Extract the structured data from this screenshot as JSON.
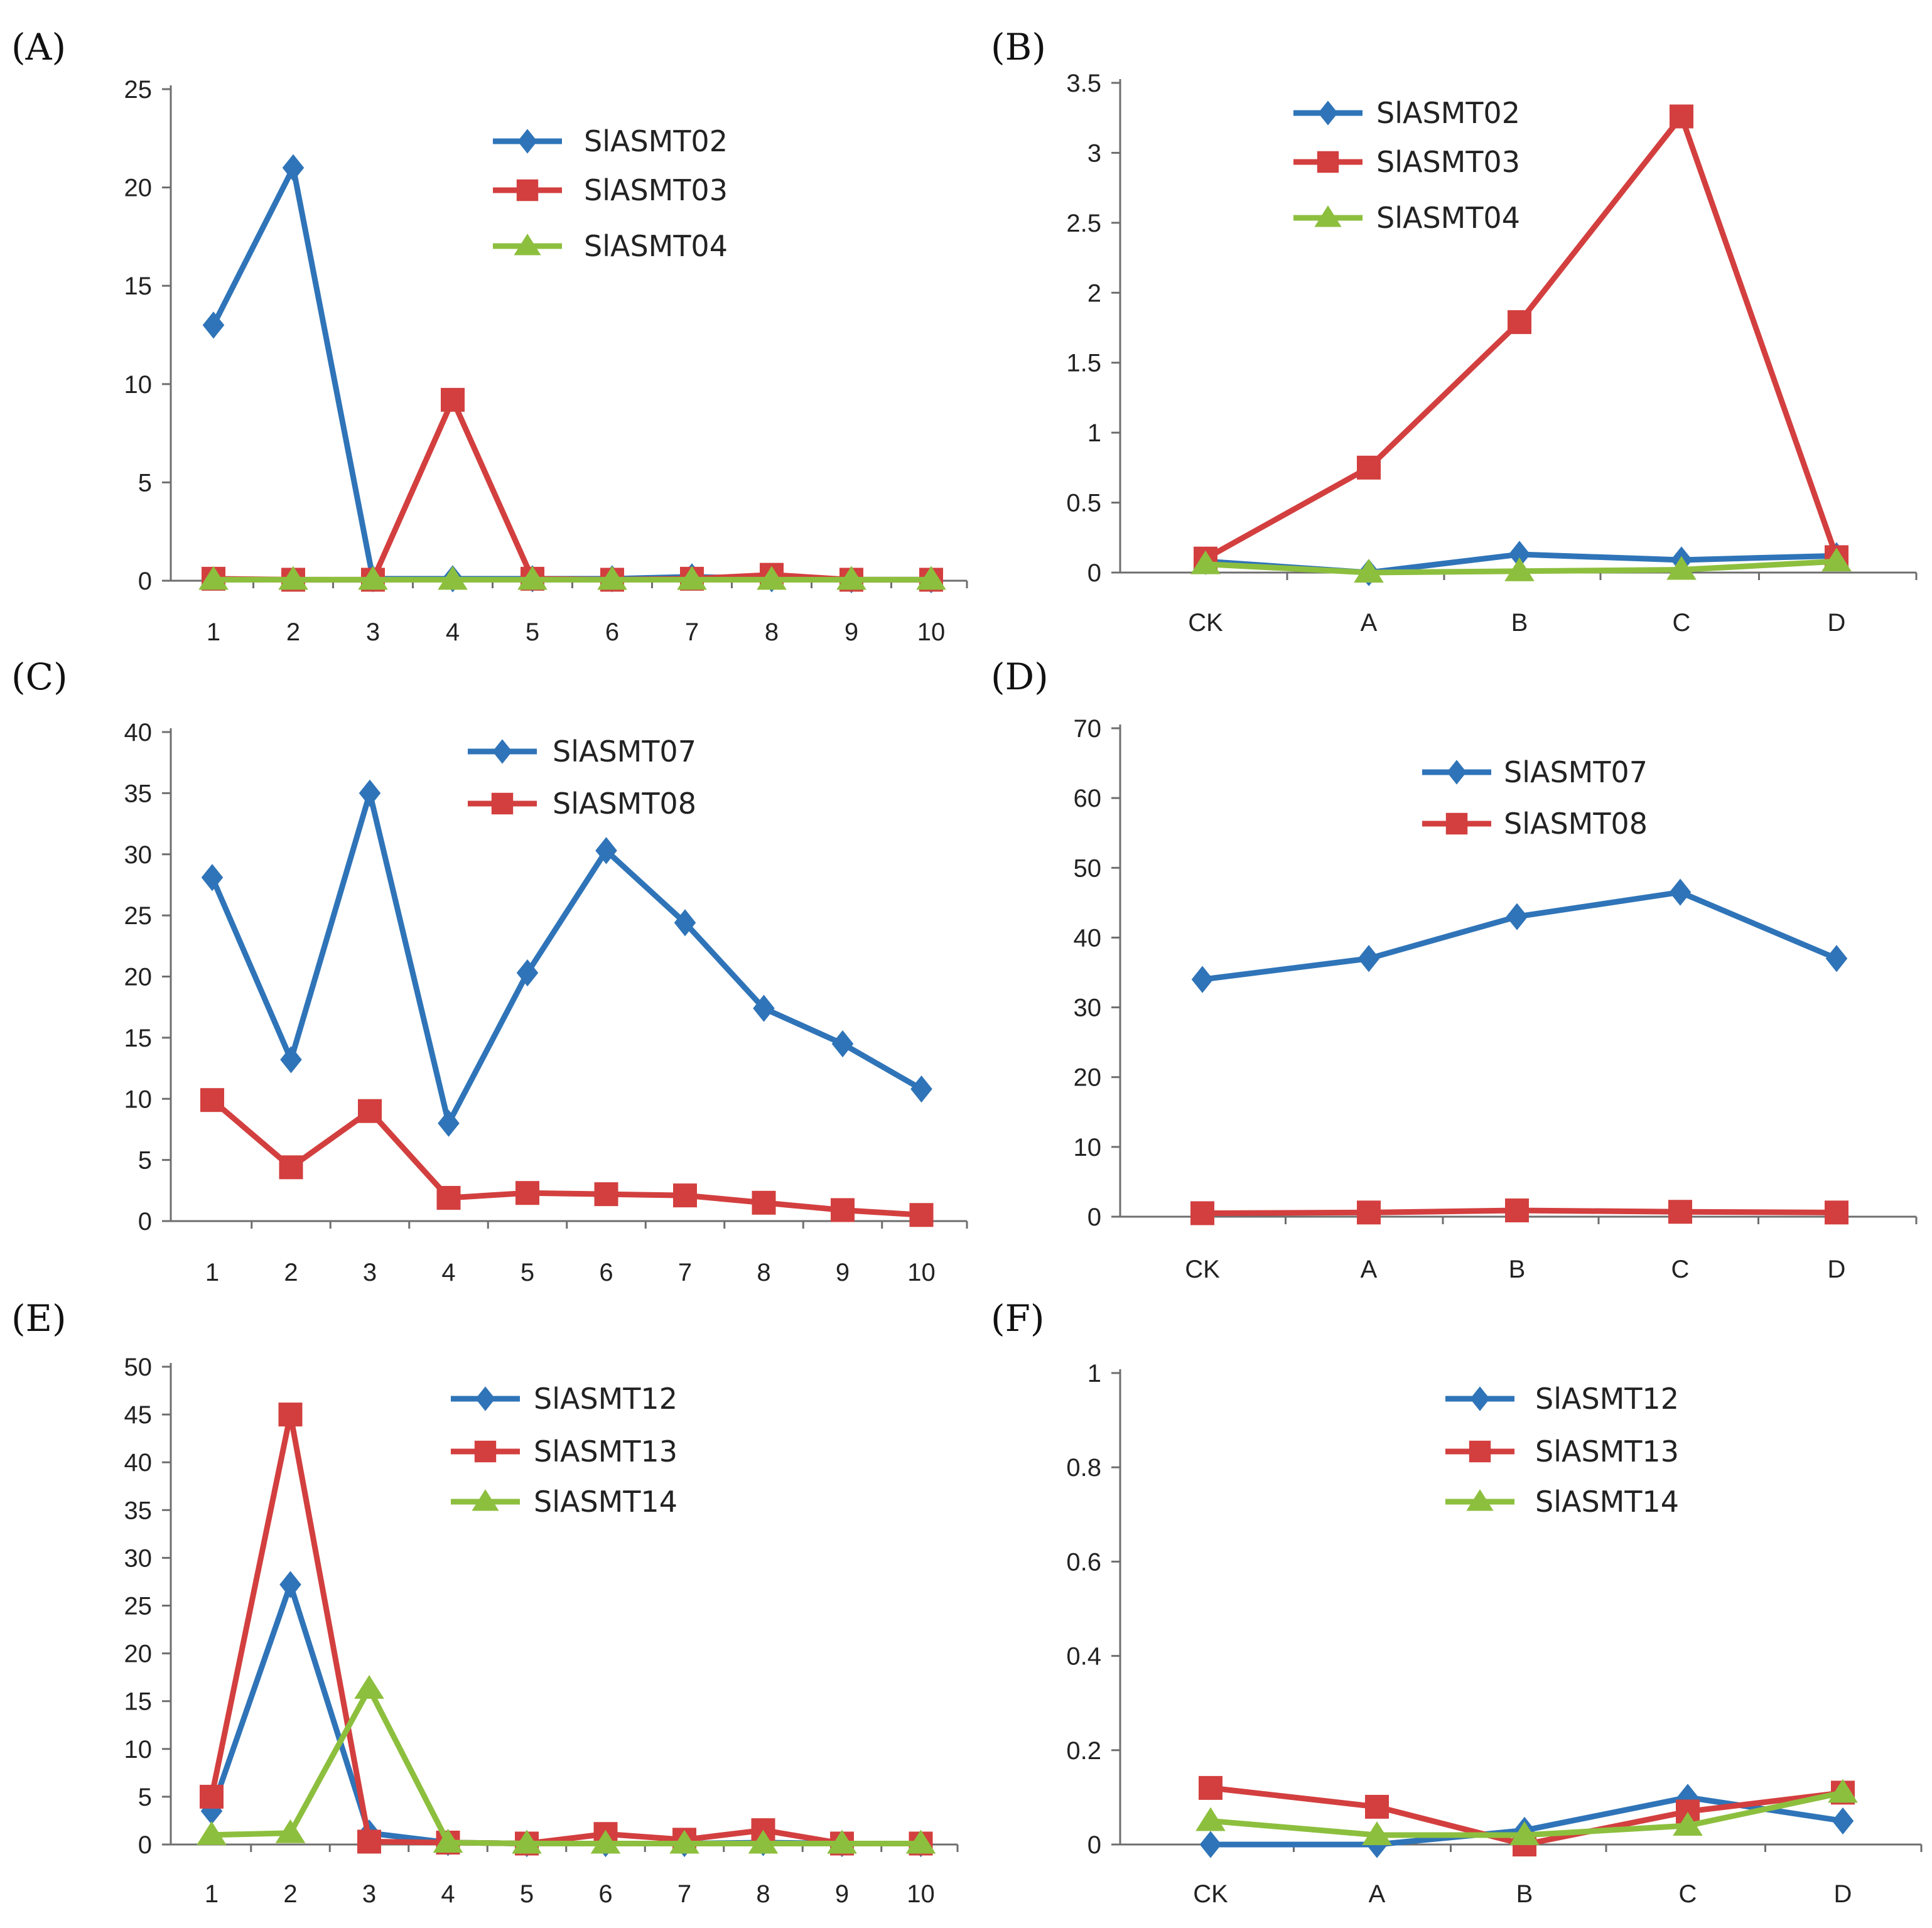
{
  "figure": {
    "colors": {
      "blue": "#2f74b8",
      "red": "#d33f3f",
      "green": "#8dbf3e"
    }
  },
  "chart_data": [
    {
      "panel": "(A)",
      "type": "line",
      "categories": [
        "1",
        "2",
        "3",
        "4",
        "5",
        "6",
        "7",
        "8",
        "9",
        "10"
      ],
      "ylim": [
        0,
        25
      ],
      "yticks": [
        "0",
        "5",
        "10",
        "15",
        "20",
        "25"
      ],
      "series": [
        {
          "name": "SlASMT02",
          "marker": "diamond",
          "color": "#2f74b8",
          "values": [
            13,
            21,
            0.1,
            0.1,
            0.1,
            0.1,
            0.2,
            0.1,
            0.05,
            0.05
          ]
        },
        {
          "name": "SlASMT03",
          "marker": "square",
          "color": "#d33f3f",
          "values": [
            0.1,
            0.05,
            0.05,
            9.2,
            0.1,
            0.05,
            0.1,
            0.3,
            0.05,
            0.05
          ]
        },
        {
          "name": "SlASMT04",
          "marker": "triangle",
          "color": "#8dbf3e",
          "values": [
            0.05,
            0.05,
            0.05,
            0.05,
            0.05,
            0.05,
            0.05,
            0.05,
            0.05,
            0.05
          ]
        }
      ]
    },
    {
      "panel": "(B)",
      "type": "line",
      "categories": [
        "CK",
        "A",
        "B",
        "C",
        "D"
      ],
      "ylim": [
        0,
        3.5
      ],
      "yticks": [
        "0",
        "0.5",
        "1",
        "1.5",
        "2",
        "2.5",
        "3",
        "3.5"
      ],
      "series": [
        {
          "name": "SlASMT02",
          "marker": "diamond",
          "color": "#2f74b8",
          "values": [
            0.08,
            0.0,
            0.13,
            0.09,
            0.12
          ]
        },
        {
          "name": "SlASMT03",
          "marker": "square",
          "color": "#d33f3f",
          "values": [
            0.1,
            0.75,
            1.79,
            3.26,
            0.11
          ]
        },
        {
          "name": "SlASMT04",
          "marker": "triangle",
          "color": "#8dbf3e",
          "values": [
            0.06,
            0.0,
            0.01,
            0.02,
            0.08
          ]
        }
      ]
    },
    {
      "panel": "(C)",
      "type": "line",
      "categories": [
        "1",
        "2",
        "3",
        "4",
        "5",
        "6",
        "7",
        "8",
        "9",
        "10"
      ],
      "ylim": [
        0,
        40
      ],
      "yticks": [
        "0",
        "5",
        "10",
        "15",
        "20",
        "25",
        "30",
        "35",
        "40"
      ],
      "series": [
        {
          "name": "SlASMT07",
          "marker": "diamond",
          "color": "#2f74b8",
          "values": [
            28.1,
            13.2,
            35,
            8,
            20.3,
            30.3,
            24.4,
            17.4,
            14.5,
            10.8
          ]
        },
        {
          "name": "SlASMT08",
          "marker": "square",
          "color": "#d33f3f",
          "values": [
            9.9,
            4.4,
            9,
            1.9,
            2.3,
            2.2,
            2.1,
            1.5,
            0.9,
            0.5
          ]
        }
      ]
    },
    {
      "panel": "(D)",
      "type": "line",
      "categories": [
        "CK",
        "A",
        "B",
        "C",
        "D"
      ],
      "ylim": [
        0,
        70
      ],
      "yticks": [
        "0",
        "10",
        "20",
        "30",
        "40",
        "50",
        "60",
        "70"
      ],
      "series": [
        {
          "name": "SlASMT07",
          "marker": "diamond",
          "color": "#2f74b8",
          "values": [
            34,
            37,
            43,
            46.5,
            37
          ]
        },
        {
          "name": "SlASMT08",
          "marker": "square",
          "color": "#d33f3f",
          "values": [
            0.5,
            0.6,
            0.9,
            0.7,
            0.6
          ]
        }
      ]
    },
    {
      "panel": "(E)",
      "type": "line",
      "categories": [
        "1",
        "2",
        "3",
        "4",
        "5",
        "6",
        "7",
        "8",
        "9",
        "10"
      ],
      "ylim": [
        0,
        50
      ],
      "yticks": [
        "0",
        "5",
        "10",
        "15",
        "20",
        "25",
        "30",
        "35",
        "40",
        "45",
        "50"
      ],
      "series": [
        {
          "name": "SlASMT12",
          "marker": "diamond",
          "color": "#2f74b8",
          "values": [
            3.5,
            27.2,
            1.2,
            0.2,
            0.1,
            0.1,
            0.1,
            0.2,
            0.1,
            0.1
          ]
        },
        {
          "name": "SlASMT13",
          "marker": "square",
          "color": "#d33f3f",
          "values": [
            5,
            45,
            0.3,
            0.2,
            0.1,
            1.1,
            0.5,
            1.5,
            0.1,
            0.1
          ]
        },
        {
          "name": "SlASMT14",
          "marker": "triangle",
          "color": "#8dbf3e",
          "values": [
            1,
            1.2,
            16.3,
            0.2,
            0.1,
            0.1,
            0.1,
            0.1,
            0.1,
            0.1
          ]
        }
      ]
    },
    {
      "panel": "(F)",
      "type": "line",
      "categories": [
        "CK",
        "A",
        "B",
        "C",
        "D"
      ],
      "ylim": [
        0,
        1
      ],
      "yticks": [
        "0",
        "0.2",
        "0.4",
        "0.6",
        "0.8",
        "1"
      ],
      "series": [
        {
          "name": "SlASMT12",
          "marker": "diamond",
          "color": "#2f74b8",
          "values": [
            0.0,
            0.0,
            0.03,
            0.1,
            0.05
          ]
        },
        {
          "name": "SlASMT13",
          "marker": "square",
          "color": "#d33f3f",
          "values": [
            0.12,
            0.08,
            0.0,
            0.07,
            0.11
          ]
        },
        {
          "name": "SlASMT14",
          "marker": "triangle",
          "color": "#8dbf3e",
          "values": [
            0.05,
            0.02,
            0.02,
            0.04,
            0.11
          ]
        }
      ]
    }
  ]
}
